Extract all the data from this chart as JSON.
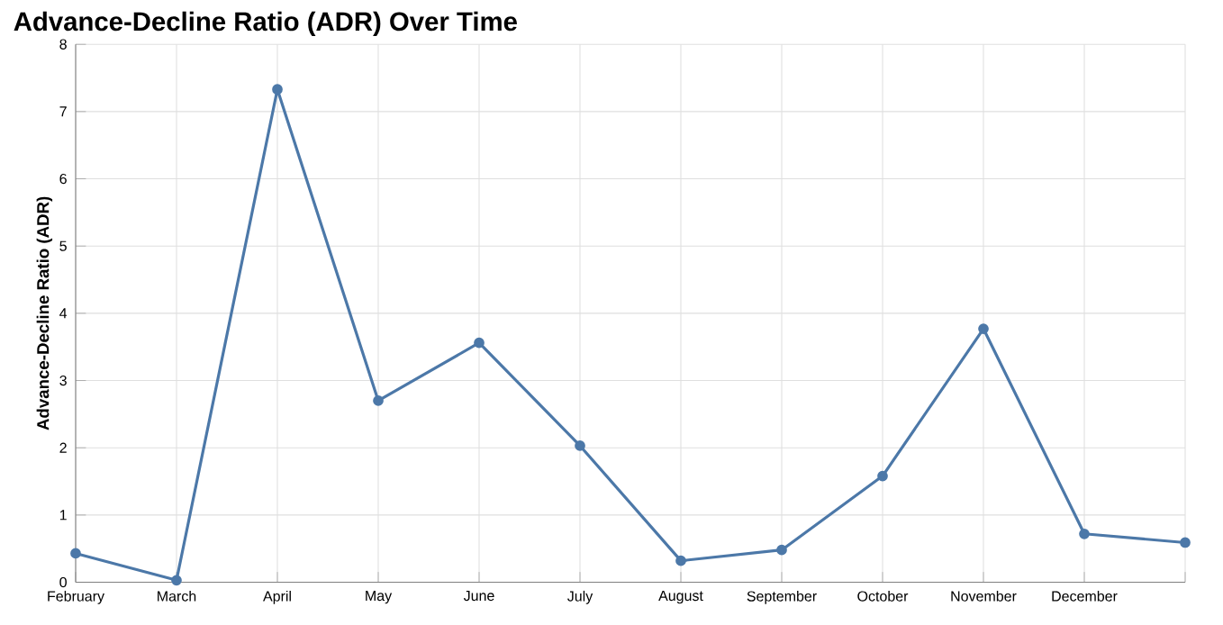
{
  "chart_data": {
    "type": "line",
    "title": "Advance-Decline Ratio (ADR) Over Time",
    "ylabel": "Advance-Decline Ratio (ADR)",
    "categories": [
      "February",
      "March",
      "April",
      "May",
      "June",
      "July",
      "August",
      "September",
      "October",
      "November",
      "December",
      null
    ],
    "values": [
      0.43,
      0.03,
      7.33,
      2.7,
      3.56,
      2.03,
      0.32,
      0.48,
      1.58,
      3.77,
      0.72,
      0.59
    ],
    "color": "#4c78a8",
    "ylim": [
      0,
      8
    ],
    "yticks": [
      0,
      1,
      2,
      3,
      4,
      5,
      6,
      7,
      8
    ],
    "grid": true,
    "marker": "circle",
    "line_style": "solid"
  }
}
